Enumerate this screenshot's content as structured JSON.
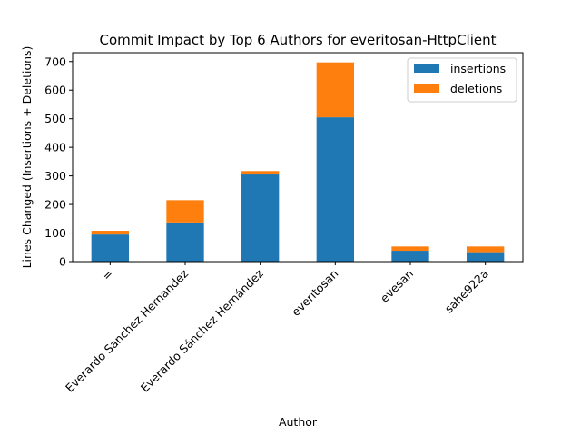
{
  "chart_data": {
    "type": "bar",
    "stacked": true,
    "title": "Commit Impact by Top 6 Authors for everitosan-HttpClient",
    "xlabel": "Author",
    "ylabel": "Lines Changed (Insertions + Deletions)",
    "categories": [
      "=",
      "Everardo Sanchez Hernandez",
      "Everardo Sánchez Hernández",
      "everitosan",
      "evesan",
      "sahe922a"
    ],
    "series": [
      {
        "name": "insertions",
        "color": "#1f77b4",
        "values": [
          95,
          137,
          305,
          505,
          38,
          33
        ]
      },
      {
        "name": "deletions",
        "color": "#ff7f0e",
        "values": [
          13,
          78,
          12,
          192,
          15,
          20
        ]
      }
    ],
    "ylim": [
      0,
      731
    ],
    "yticks": [
      0,
      100,
      200,
      300,
      400,
      500,
      600,
      700
    ],
    "grid": false,
    "legend_position": "top-right"
  }
}
